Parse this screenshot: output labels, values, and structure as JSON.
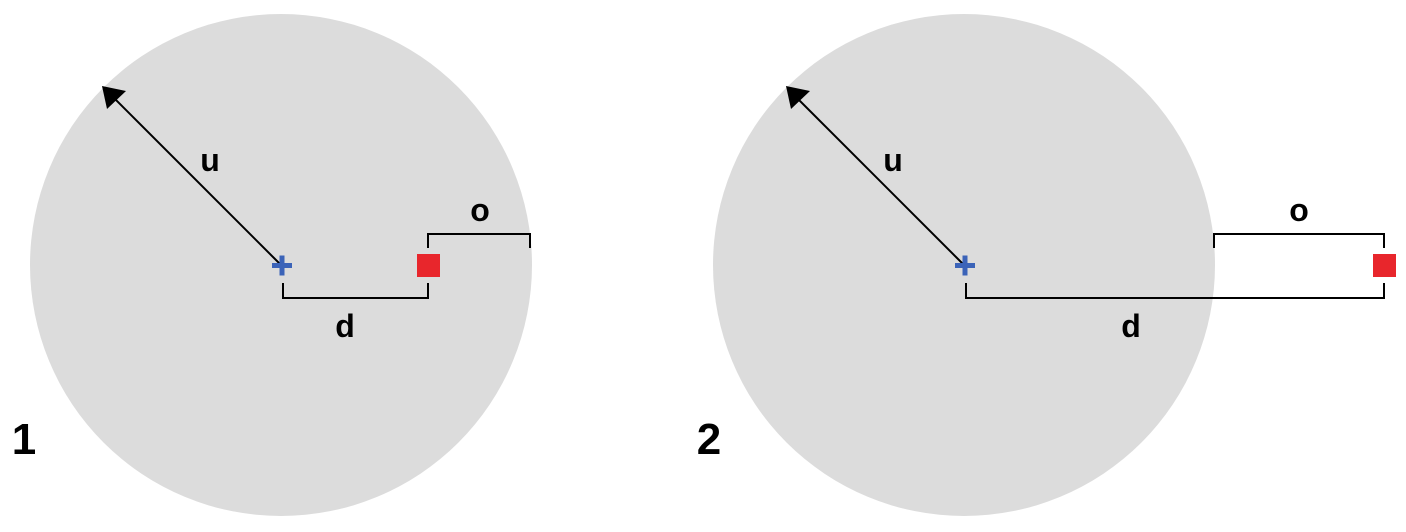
{
  "colors": {
    "background": "#ffffff",
    "circle_fill": "#dcdcdc",
    "center_marker": "#3b63b8",
    "target_marker": "#e8262c",
    "line": "#000000"
  },
  "panels": [
    {
      "number": "1",
      "radius_label": "u",
      "distance_label": "d",
      "offset_label": "o",
      "center_marker": "blue-cross",
      "target_marker": "red-square"
    },
    {
      "number": "2",
      "radius_label": "u",
      "distance_label": "d",
      "offset_label": "o",
      "center_marker": "blue-cross",
      "target_marker": "red-square"
    }
  ]
}
